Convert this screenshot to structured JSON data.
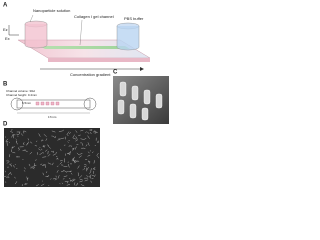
{
  "panels": [
    {
      "label": "A",
      "texts": [
        "Nanoparticle solution",
        "Collagen I gel channel",
        "PBS buffer",
        "Concentration gradient",
        "Ez",
        "Ex"
      ]
    },
    {
      "label": "B",
      "texts": [
        "Channel volume: 30ul",
        "Channel height: 0.4mm",
        "6.5mm",
        "17mm"
      ]
    },
    {
      "label": "C",
      "texts": []
    },
    {
      "label": "D",
      "texts": []
    }
  ]
}
